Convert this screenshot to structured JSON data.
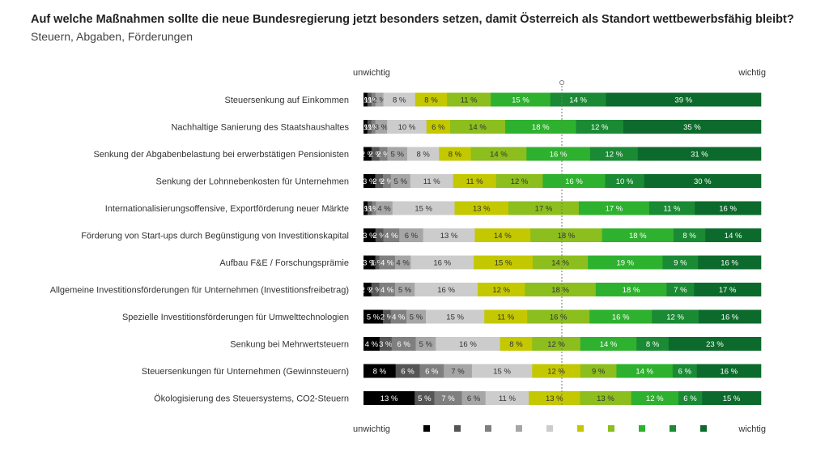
{
  "title": "Auf welche Maßnahmen sollte die neue Bundesregierung jetzt besonders setzen, damit Österreich als Standort wettbewerbsfähig bleibt?",
  "subtitle": "Steuern, Abgaben, Förderungen",
  "chart_data": {
    "type": "bar",
    "orientation": "horizontal",
    "stacked": true,
    "scale_left_label": "unwichtig",
    "scale_right_label": "wichtig",
    "categories": [
      "Steuersenkung auf Einkommen",
      "Nachhaltige Sanierung des Staatshaushaltes",
      "Senkung der Abgabenbelastung bei erwerbstätigen Pensionisten",
      "Senkung der Lohnnebenkosten für Unternehmen",
      "Internationalisierungsoffensive, Exportförderung neuer Märkte",
      "Förderung von Start-ups durch Begünstigung von Investitionskapital",
      "Aufbau F&E / Forschungsprämie",
      "Allgemeine Investitionsförderungen für Unternehmen (Investitionsfreibetrag)",
      "Spezielle Investitionsförderungen für Umwelttechnologien",
      "Senkung bei Mehrwertsteuern",
      "Steuersenkungen für Unternehmen (Gewinnsteuern)",
      "Ökologisierung des Steuersystems, CO2-Steuern"
    ],
    "values": [
      [
        1,
        1,
        1,
        2,
        8,
        8,
        11,
        15,
        14,
        39
      ],
      [
        1,
        1,
        1,
        3,
        10,
        6,
        14,
        18,
        12,
        35
      ],
      [
        2,
        2,
        2,
        5,
        8,
        8,
        14,
        16,
        12,
        31
      ],
      [
        3,
        2,
        2,
        5,
        11,
        11,
        12,
        16,
        10,
        30
      ],
      [
        1,
        1,
        1,
        4,
        15,
        13,
        17,
        17,
        11,
        16
      ],
      [
        3,
        2,
        4,
        6,
        13,
        14,
        18,
        18,
        8,
        14
      ],
      [
        3,
        1,
        4,
        4,
        16,
        15,
        14,
        19,
        9,
        16
      ],
      [
        2,
        2,
        4,
        5,
        16,
        12,
        18,
        18,
        7,
        17
      ],
      [
        5,
        2,
        4,
        5,
        15,
        11,
        16,
        16,
        12,
        16
      ],
      [
        4,
        3,
        6,
        5,
        16,
        8,
        12,
        14,
        8,
        23
      ],
      [
        8,
        6,
        6,
        7,
        15,
        12,
        9,
        14,
        6,
        16
      ],
      [
        13,
        5,
        7,
        6,
        11,
        13,
        13,
        12,
        6,
        15
      ]
    ],
    "labels": [
      [
        "1%",
        "1%",
        "1%",
        "2 %",
        "8 %",
        "8 %",
        "11 %",
        "15 %",
        "14 %",
        "39 %"
      ],
      [
        "1%",
        "1%",
        "1%",
        "3 %",
        "10 %",
        "6 %",
        "14 %",
        "18 %",
        "12 %",
        "35 %"
      ],
      [
        "2 %",
        "2 %",
        "2 %",
        "5 %",
        "8 %",
        "8 %",
        "14 %",
        "16 %",
        "12 %",
        "31 %"
      ],
      [
        "3 %",
        "2 %",
        "2 %",
        "5 %",
        "11 %",
        "11 %",
        "12 %",
        "16 %",
        "10 %",
        "30 %"
      ],
      [
        "1%",
        "1%",
        "1%",
        "4 %",
        "15 %",
        "13 %",
        "17 %",
        "17 %",
        "11 %",
        "16 %"
      ],
      [
        "3 %",
        "2 %",
        "4 %",
        "6 %",
        "13 %",
        "14 %",
        "18 %",
        "18 %",
        "8 %",
        "14 %"
      ],
      [
        "3 %",
        "1 %",
        "4 %",
        "4 %",
        "16 %",
        "15 %",
        "14 %",
        "19 %",
        "9 %",
        "16 %"
      ],
      [
        "2 %",
        "2 %",
        "4 %",
        "5 %",
        "16 %",
        "12 %",
        "18 %",
        "18 %",
        "7 %",
        "17 %"
      ],
      [
        "5 %",
        "2 %",
        "4 %",
        "5 %",
        "15 %",
        "11 %",
        "16 %",
        "16 %",
        "12 %",
        "16 %"
      ],
      [
        "4 %",
        "3 %",
        "6 %",
        "5 %",
        "16 %",
        "8 %",
        "12 %",
        "14 %",
        "8 %",
        "23 %"
      ],
      [
        "8 %",
        "6 %",
        "6 %",
        "7 %",
        "15 %",
        "12 %",
        "9 %",
        "14 %",
        "6 %",
        "16 %"
      ],
      [
        "13 %",
        "5 %",
        "7 %",
        "6 %",
        "11 %",
        "13 %",
        "13 %",
        "12 %",
        "6 %",
        "15 %"
      ]
    ],
    "colors": [
      "#000000",
      "#555555",
      "#7f7f7f",
      "#a6a6a6",
      "#cccccc",
      "#c4c800",
      "#8cbe1e",
      "#2eb12e",
      "#1a8a34",
      "#0c6b2c"
    ],
    "text_colors": [
      "#ffffff",
      "#ffffff",
      "#ffffff",
      "#333333",
      "#333333",
      "#333333",
      "#333333",
      "#ffffff",
      "#ffffff",
      "#ffffff"
    ],
    "xlim": [
      0,
      100
    ],
    "midline": true,
    "legend_position": "bottom"
  }
}
